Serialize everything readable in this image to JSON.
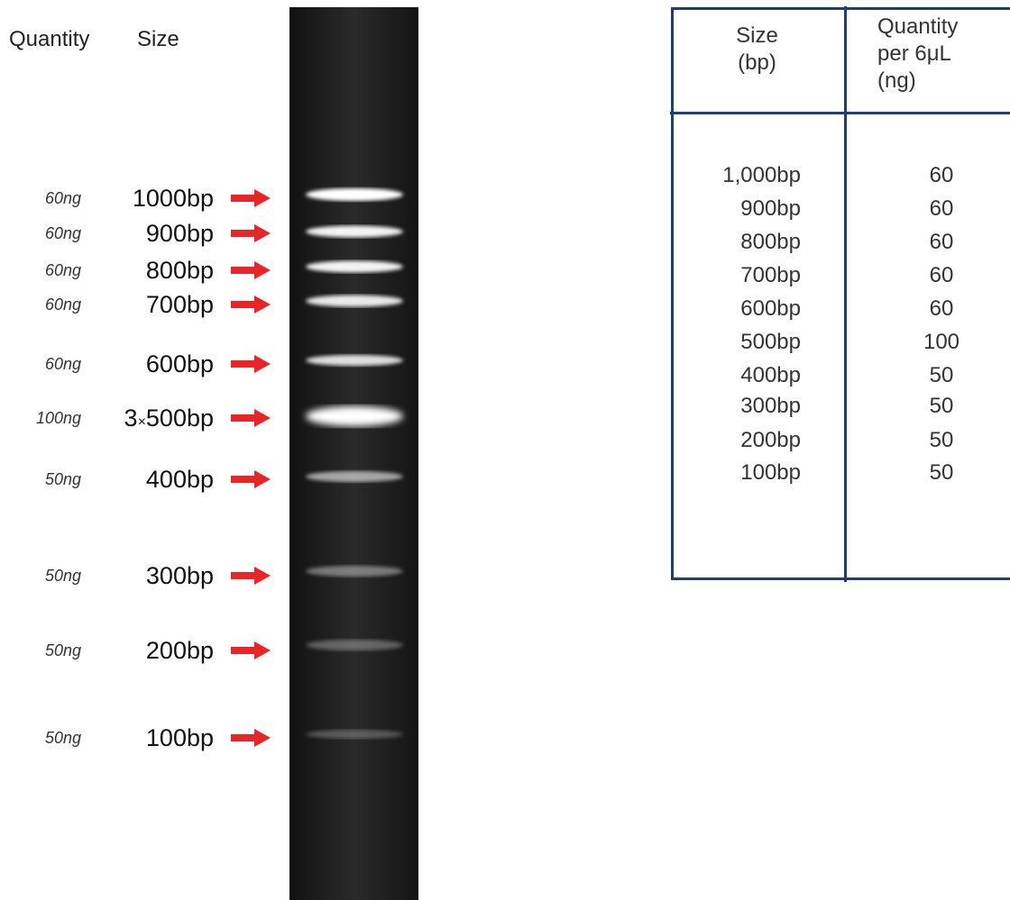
{
  "headers": {
    "quantity": "Quantity",
    "size": "Size"
  },
  "ladder": [
    {
      "quantity": "60ng",
      "size": "1000bp"
    },
    {
      "quantity": "60ng",
      "size": "900bp"
    },
    {
      "quantity": "60ng",
      "size": "800bp"
    },
    {
      "quantity": "60ng",
      "size": "700bp"
    },
    {
      "quantity": "60ng",
      "size": "600bp"
    },
    {
      "quantity": "100ng",
      "size_prefix": "3",
      "size_mult": "×",
      "size": "500bp"
    },
    {
      "quantity": "50ng",
      "size": "400bp"
    },
    {
      "quantity": "50ng",
      "size": "300bp"
    },
    {
      "quantity": "50ng",
      "size": "200bp"
    },
    {
      "quantity": "50ng",
      "size": "100bp"
    }
  ],
  "table": {
    "header_size": "Size\n(bp)",
    "header_quantity": "Quantity\nper 6μL\n(ng)",
    "rows": [
      {
        "size": "1,000bp",
        "quantity": "60"
      },
      {
        "size": "900bp",
        "quantity": "60"
      },
      {
        "size": "800bp",
        "quantity": "60"
      },
      {
        "size": "700bp",
        "quantity": "60"
      },
      {
        "size": "600bp",
        "quantity": "60"
      },
      {
        "size": "500bp",
        "quantity": "100"
      },
      {
        "size": "400bp",
        "quantity": "50"
      },
      {
        "size": "300bp",
        "quantity": "50"
      },
      {
        "size": "200bp",
        "quantity": "50"
      },
      {
        "size": "100bp",
        "quantity": "50"
      }
    ]
  },
  "colors": {
    "arrow": "#e8262a",
    "table_border": "#1f3f6e",
    "gel": "#1b1b1b"
  }
}
